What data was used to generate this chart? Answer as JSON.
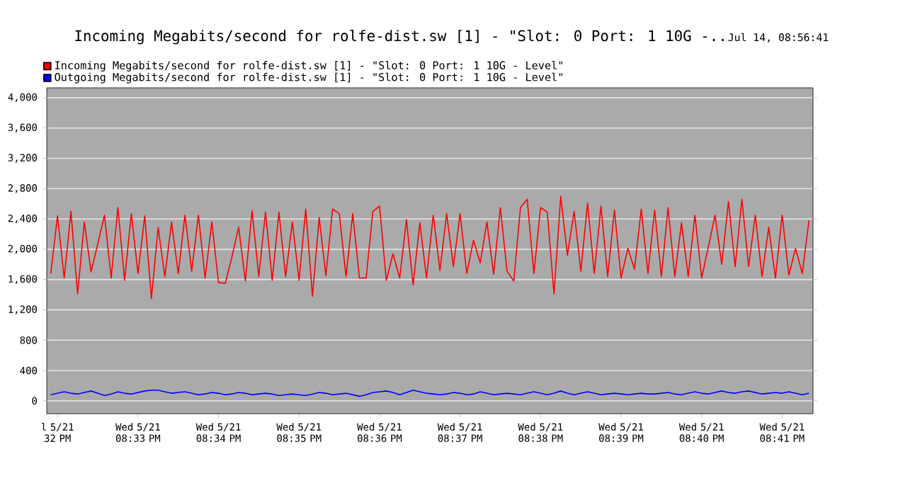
{
  "chart_data": {
    "type": "line",
    "title": "Incoming Megabits/second for rolfe-dist.sw [1] - \"Slot: 0 Port: 1 10G -..",
    "subtitle": "Jul 14, 08:56:41",
    "categories": [
      null,
      "l 5/21 32 PM",
      null,
      null,
      null,
      null,
      null,
      null,
      null,
      null,
      null,
      null,
      null,
      "Wed 5/21 08:33 PM",
      null,
      null,
      null,
      null,
      null,
      null,
      null,
      null,
      null,
      null,
      null,
      "Wed 5/21 08:34 PM",
      null,
      null,
      null,
      null,
      null,
      null,
      null,
      null,
      null,
      null,
      null,
      "Wed 5/21 08:35 PM",
      null,
      null,
      null,
      null,
      null,
      null,
      null,
      null,
      null,
      null,
      null,
      "Wed 5/21 08:36 PM",
      null,
      null,
      null,
      null,
      null,
      null,
      null,
      null,
      null,
      null,
      null,
      "Wed 5/21 08:37 PM",
      null,
      null,
      null,
      null,
      null,
      null,
      null,
      null,
      null,
      null,
      null,
      "Wed 5/21 08:38 PM",
      null,
      null,
      null,
      null,
      null,
      null,
      null,
      null,
      null,
      null,
      null,
      "Wed 5/21 08:39 PM",
      null,
      null,
      null,
      null,
      null,
      null,
      null,
      null,
      null,
      null,
      null,
      "Wed 5/21 08:40 PM",
      null,
      null,
      null,
      null,
      null,
      null,
      null,
      null,
      null,
      null,
      null,
      "Wed 5/21 08:41 PM",
      null,
      null,
      null,
      null
    ],
    "ylim": [
      -170,
      4130
    ],
    "yticks": [
      0,
      400,
      800,
      {
        "value": 1200,
        "label": "1,200"
      },
      {
        "value": 1600,
        "label": "1,600"
      },
      {
        "value": 2000,
        "label": "2,000"
      },
      {
        "value": 2400,
        "label": "2,400"
      },
      {
        "value": 2800,
        "label": "2,800"
      },
      {
        "value": 3200,
        "label": "3,200"
      },
      {
        "value": 3600,
        "label": "3,600"
      },
      {
        "value": 4000,
        "label": "4,000"
      }
    ],
    "grid": "y",
    "legend": "top left",
    "marker": "none",
    "series": [
      {
        "name": "Incoming Megabits/second for rolfe-dist.sw [1] - \"Slot: 0 Port: 1 10G - Level\"",
        "color": "#ff0000",
        "values": [
          1680,
          2440,
          1620,
          2500,
          1410,
          2360,
          1700,
          2070,
          2450,
          1620,
          2550,
          1590,
          2470,
          1680,
          2440,
          1350,
          2290,
          1640,
          2360,
          1680,
          2450,
          1710,
          2450,
          1620,
          2360,
          1560,
          1550,
          1900,
          2290,
          1580,
          2510,
          1640,
          2490,
          1590,
          2490,
          1640,
          2360,
          1590,
          2530,
          1380,
          2420,
          1650,
          2530,
          2470,
          1640,
          2470,
          1620,
          1620,
          2500,
          2570,
          1590,
          1940,
          1620,
          2390,
          1530,
          2350,
          1620,
          2450,
          1720,
          2470,
          1770,
          2470,
          1680,
          2120,
          1820,
          2360,
          1670,
          2550,
          1710,
          1580,
          2550,
          2660,
          1680,
          2550,
          2490,
          1410,
          2700,
          1920,
          2500,
          1710,
          2610,
          1680,
          2570,
          1640,
          2520,
          1620,
          2010,
          1740,
          2530,
          1680,
          2520,
          1640,
          2550,
          1640,
          2350,
          1640,
          2450,
          1620,
          2030,
          2450,
          1800,
          2630,
          1770,
          2660,
          1770,
          2450,
          1640,
          2290,
          1620,
          2450,
          1660,
          2010,
          1680,
          2380
        ]
      },
      {
        "name": "Outgoing Megabits/second for rolfe-dist.sw [1] - \"Slot: 0 Port: 1 10G - Level\"",
        "color": "#0000ff",
        "values": [
          80,
          100,
          120,
          100,
          90,
          110,
          130,
          100,
          70,
          90,
          120,
          100,
          90,
          110,
          130,
          140,
          140,
          120,
          100,
          110,
          120,
          100,
          80,
          90,
          110,
          100,
          80,
          90,
          110,
          100,
          80,
          90,
          100,
          90,
          70,
          80,
          90,
          80,
          70,
          90,
          110,
          100,
          80,
          90,
          100,
          80,
          60,
          80,
          110,
          120,
          130,
          110,
          80,
          110,
          140,
          120,
          100,
          90,
          80,
          90,
          110,
          100,
          80,
          90,
          120,
          100,
          80,
          90,
          100,
          90,
          80,
          100,
          120,
          100,
          80,
          100,
          130,
          100,
          80,
          100,
          120,
          100,
          80,
          90,
          100,
          90,
          80,
          90,
          100,
          90,
          90,
          100,
          110,
          90,
          80,
          100,
          120,
          100,
          90,
          110,
          130,
          110,
          100,
          120,
          130,
          110,
          90,
          100,
          110,
          100,
          120,
          100,
          80,
          100
        ]
      }
    ]
  }
}
